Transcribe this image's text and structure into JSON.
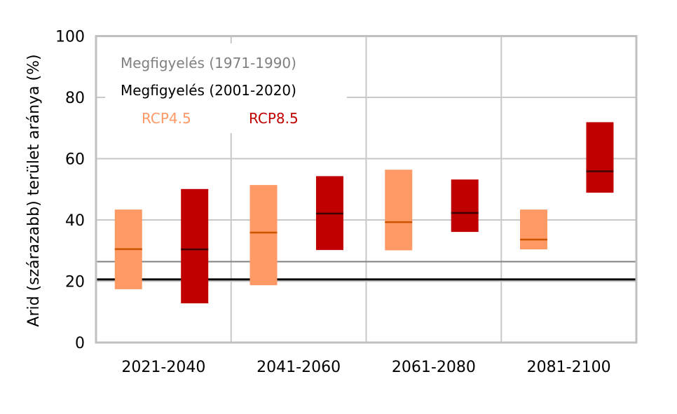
{
  "chart_data": {
    "type": "bar",
    "subtype": "floating-range-with-median",
    "ylabel": "Arid (szárazabb) terület aránya (%)",
    "xlabel": "",
    "ylim": [
      0,
      100
    ],
    "yticks": [
      0,
      20,
      40,
      60,
      80,
      100
    ],
    "grid": true,
    "legend_placement": "top-left",
    "categories": [
      "2021-2040",
      "2041-2060",
      "2061-2080",
      "2081-2100"
    ],
    "series": [
      {
        "name": "RCP4.5",
        "color": "#FF9966",
        "median_color": "#CC5500",
        "low": [
          17.4,
          18.7,
          30.1,
          30.4
        ],
        "high": [
          43.4,
          51.4,
          56.4,
          43.4
        ],
        "median": [
          30.5,
          35.9,
          39.3,
          33.6
        ]
      },
      {
        "name": "RCP8.5",
        "color": "#C00000",
        "median_color": "#400000",
        "low": [
          12.8,
          30.2,
          36.1,
          48.9
        ],
        "high": [
          50.1,
          54.3,
          53.2,
          71.9
        ],
        "median": [
          30.4,
          42.1,
          42.3,
          55.9
        ]
      }
    ],
    "reference_lines": [
      {
        "name": "Megfigyelés (1971-1990)",
        "value": 26.4,
        "color": "#808080"
      },
      {
        "name": "Megfigyelés (2001-2020)",
        "value": 20.6,
        "color": "#000000"
      }
    ]
  }
}
